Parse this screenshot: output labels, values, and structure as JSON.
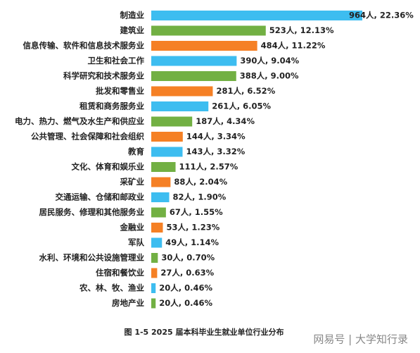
{
  "chart_data": {
    "type": "bar",
    "orientation": "horizontal",
    "caption": "图 1-5   2025 届本科毕业生就业单位行业分布",
    "watermark": "网易号 | 大学知行录",
    "categories": [
      "制造业",
      "建筑业",
      "信息传输、软件和信息技术服务业",
      "卫生和社会工作",
      "科学研究和技术服务业",
      "批发和零售业",
      "租赁和商务服务业",
      "电力、热力、燃气及水生产和供应业",
      "公共管理、社会保障和社会组织",
      "教育",
      "文化、体育和娱乐业",
      "采矿业",
      "交通运输、仓储和邮政业",
      "居民服务、修理和其他服务业",
      "金融业",
      "军队",
      "水利、环境和公共设施管理业",
      "住宿和餐饮业",
      "农、林、牧、渔业",
      "房地产业"
    ],
    "values": [
      964,
      523,
      484,
      390,
      388,
      281,
      261,
      187,
      144,
      143,
      111,
      88,
      82,
      67,
      53,
      49,
      30,
      27,
      20,
      20
    ],
    "value_labels": [
      "964人, 22.36%",
      "523人, 12.13%",
      "484人, 11.22%",
      "390人, 9.04%",
      "388人, 9.00%",
      "281人, 6.52%",
      "261人, 6.05%",
      "187人, 4.34%",
      "144人, 3.34%",
      "143人, 3.32%",
      "111人, 2.57%",
      "88人, 2.04%",
      "82人, 1.90%",
      "67人, 1.55%",
      "53人, 1.23%",
      "49人, 1.14%",
      "30人, 0.70%",
      "27人, 0.63%",
      "20人, 0.46%",
      "20人, 0.46%"
    ],
    "colors": [
      "#3dbdf0",
      "#72b043",
      "#f58025",
      "#3dbdf0",
      "#72b043",
      "#f58025",
      "#3dbdf0",
      "#72b043",
      "#f58025",
      "#3dbdf0",
      "#72b043",
      "#f58025",
      "#3dbdf0",
      "#72b043",
      "#f58025",
      "#3dbdf0",
      "#72b043",
      "#f58025",
      "#3dbdf0",
      "#72b043"
    ]
  }
}
